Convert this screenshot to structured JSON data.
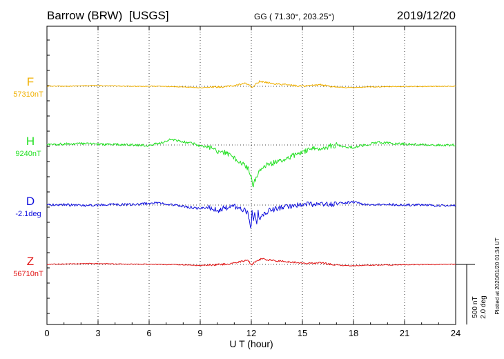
{
  "header": {
    "station": "Barrow (BRW)",
    "network": "[USGS]",
    "coords": "GG ( 71.30°, 203.25°)",
    "date": "2019/12/20"
  },
  "side_note": "Plotted at 2020/01/20 01:34 UT",
  "chart_data": {
    "type": "line",
    "xlabel": "U T (hour)",
    "xlim": [
      0,
      24
    ],
    "x_ticks": [
      0,
      3,
      6,
      9,
      12,
      15,
      18,
      21,
      24
    ],
    "scale_bar": {
      "nT": "500 nT",
      "deg": "2.0 deg"
    },
    "series": [
      {
        "name": "F",
        "baseline_label": "57310nT",
        "color": "#f0b000",
        "baseline": 57310,
        "unit": "nT",
        "units_per_scale": 500,
        "x": [
          0,
          1,
          2,
          3,
          4,
          5,
          6,
          7,
          8,
          8.5,
          9,
          9.5,
          10,
          10.5,
          11,
          11.3,
          11.6,
          11.8,
          11.9,
          12.0,
          12.05,
          12.15,
          12.3,
          12.5,
          12.7,
          13,
          13.3,
          13.6,
          14,
          14.5,
          15,
          15.5,
          16,
          16.5,
          17,
          17.5,
          18,
          18.5,
          19,
          20,
          21,
          22,
          23,
          24
        ],
        "values": [
          57312,
          57311,
          57314,
          57316,
          57313,
          57310,
          57311,
          57309,
          57305,
          57302,
          57297,
          57302,
          57304,
          57306,
          57315,
          57324,
          57332,
          57330,
          57320,
          57298,
          57293,
          57316,
          57335,
          57352,
          57345,
          57340,
          57333,
          57328,
          57325,
          57316,
          57312,
          57315,
          57323,
          57312,
          57306,
          57300,
          57298,
          57301,
          57305,
          57307,
          57308,
          57309,
          57310,
          57312
        ]
      },
      {
        "name": "H",
        "baseline_label": "9240nT",
        "color": "#22e022",
        "baseline": 9240,
        "unit": "nT",
        "units_per_scale": 500,
        "x": [
          0,
          1,
          2,
          3,
          4,
          5,
          6,
          6.5,
          7,
          7.3,
          7.7,
          8,
          8.5,
          9,
          9.3,
          9.6,
          10,
          10.3,
          10.6,
          10.9,
          11.2,
          11.5,
          11.8,
          11.9,
          12.0,
          12.1,
          12.2,
          12.3,
          12.5,
          12.8,
          13,
          13.3,
          13.6,
          14,
          14.3,
          14.6,
          15,
          15.3,
          15.6,
          16,
          16.3,
          16.6,
          17,
          17.3,
          17.6,
          18,
          18.5,
          19,
          19.5,
          20,
          21,
          22,
          23,
          23.5,
          24
        ],
        "values": [
          9243,
          9248,
          9252,
          9246,
          9244,
          9240,
          9235,
          9252,
          9270,
          9288,
          9275,
          9265,
          9258,
          9230,
          9225,
          9218,
          9190,
          9180,
          9170,
          9140,
          9110,
          9080,
          9050,
          9000,
          8960,
          8900,
          8940,
          8980,
          9030,
          9060,
          9080,
          9090,
          9105,
          9120,
          9140,
          9160,
          9180,
          9195,
          9205,
          9215,
          9220,
          9230,
          9240,
          9230,
          9225,
          9220,
          9235,
          9250,
          9262,
          9255,
          9248,
          9243,
          9240,
          9238,
          9242
        ]
      },
      {
        "name": "D",
        "baseline_label": "-2.1deg",
        "color": "#1010dd",
        "baseline": -2.1,
        "unit": "deg",
        "units_per_scale": 2.0,
        "x": [
          0,
          1,
          2,
          3,
          4,
          5,
          6,
          6.5,
          7,
          7.5,
          8,
          8.5,
          9,
          9.5,
          10,
          10.3,
          10.6,
          11,
          11.3,
          11.6,
          11.8,
          11.9,
          12.0,
          12.05,
          12.1,
          12.2,
          12.3,
          12.4,
          12.5,
          12.7,
          13,
          13.3,
          13.6,
          14,
          14.5,
          15,
          15.3,
          15.6,
          16,
          16.5,
          17,
          17.5,
          18,
          18.5,
          19,
          20,
          21,
          22,
          23,
          24
        ],
        "values": [
          -2.1,
          -2.08,
          -2.12,
          -2.1,
          -2.08,
          -2.09,
          -2.05,
          -2.02,
          -2.07,
          -2.1,
          -2.15,
          -2.18,
          -2.22,
          -2.18,
          -2.28,
          -2.22,
          -2.18,
          -2.14,
          -2.2,
          -2.26,
          -2.4,
          -2.7,
          -2.85,
          -2.2,
          -2.6,
          -2.3,
          -2.75,
          -2.35,
          -2.55,
          -2.4,
          -2.3,
          -2.25,
          -2.2,
          -2.15,
          -2.12,
          -2.1,
          -2.06,
          -2.08,
          -2.04,
          -2.08,
          -2.06,
          -2.02,
          -2.0,
          -2.06,
          -2.1,
          -2.08,
          -2.1,
          -2.09,
          -2.12,
          -2.1
        ]
      },
      {
        "name": "Z",
        "baseline_label": "56710nT",
        "color": "#e01010",
        "baseline": 56710,
        "unit": "nT",
        "units_per_scale": 500,
        "x": [
          0,
          1,
          2,
          3,
          4,
          5,
          6,
          7,
          8,
          8.5,
          9,
          9.5,
          10,
          10.5,
          11,
          11.5,
          11.8,
          12.0,
          12.05,
          12.1,
          12.2,
          12.4,
          12.6,
          12.8,
          13,
          13.3,
          13.6,
          14,
          14.5,
          15,
          15.5,
          16,
          16.5,
          17,
          17.5,
          18,
          18.5,
          19,
          20,
          21,
          22,
          23,
          24
        ],
        "values": [
          56712,
          56713,
          56716,
          56717,
          56714,
          56712,
          56712,
          56709,
          56707,
          56704,
          56700,
          56705,
          56708,
          56712,
          56722,
          56738,
          56742,
          56710,
          56700,
          56718,
          56728,
          56742,
          56758,
          56752,
          56748,
          56742,
          56738,
          56735,
          56728,
          56722,
          56718,
          56726,
          56714,
          56705,
          56700,
          56698,
          56702,
          56704,
          56706,
          56707,
          56709,
          56710,
          56712
        ]
      }
    ]
  }
}
